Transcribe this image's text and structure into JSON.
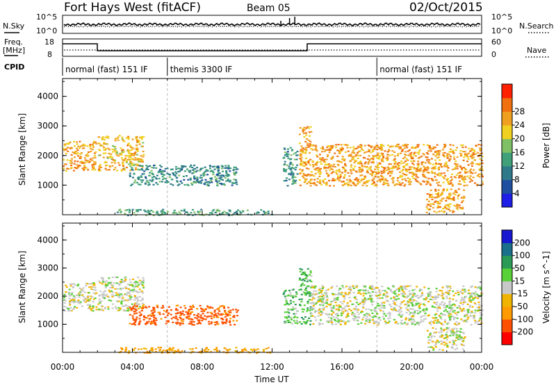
{
  "header": {
    "station": "Fort Hays West (fitACF)",
    "beam": "Beam 05",
    "date": "02/Oct/2015"
  },
  "panel_labels": {
    "nsky": "N.Sky",
    "nsearch": "N.Search",
    "freq_line1": "Freq.",
    "freq_line2": "[MHz]",
    "nave": "Nave",
    "cpid": "CPID"
  },
  "noise_ticks": {
    "left_top": "10^5",
    "left_bottom": "10^0",
    "right_top": "10^5",
    "right_bottom": "10^0"
  },
  "freq_ticks": {
    "left_top": "18",
    "left_bottom": "8",
    "right_top": "60",
    "right_bottom": "0"
  },
  "cpid_segments": [
    {
      "label": "normal (fast) 151 IF",
      "start_h": 0,
      "end_h": 6
    },
    {
      "label": "themis 3300 IF",
      "start_h": 6,
      "end_h": 18
    },
    {
      "label": "normal (fast) 151 IF",
      "start_h": 18,
      "end_h": 24
    }
  ],
  "colors": {
    "power": [
      "#1e1ee6",
      "#1e4fa0",
      "#2f7a8a",
      "#3fa07a",
      "#7fbf66",
      "#f0d020",
      "#f0a020",
      "#f07010",
      "#ff2000"
    ],
    "velocity": [
      "#ff0000",
      "#ff5000",
      "#ff9a00",
      "#f0b400",
      "#c8c8c8",
      "#58d038",
      "#2a9a56",
      "#1a6f8a",
      "#1818d0"
    ],
    "vel_grey": "#c8c8c8"
  },
  "chart_data": {
    "type": "heatmap",
    "xlabel": "Time UT",
    "ylabel": "Slant Range [km]",
    "xlim": [
      0,
      24
    ],
    "ylim": [
      0,
      4600
    ],
    "x_ticks": [
      "00:00",
      "04:00",
      "08:00",
      "12:00",
      "16:00",
      "20:00",
      "00:00"
    ],
    "y_ticks": [
      1000,
      2000,
      3000,
      4000
    ],
    "power_colorbar": {
      "label": "Power [dB]",
      "ticks": [
        4,
        8,
        12,
        16,
        20,
        24,
        28
      ]
    },
    "velocity_colorbar": {
      "label": "Velocity [m s^-1]",
      "ticks": [
        -200,
        -100,
        -50,
        -15,
        15,
        50,
        100,
        200
      ]
    },
    "echo_regions": [
      {
        "t0": 0.0,
        "t1": 1.9,
        "r0": 1500,
        "r1": 2500,
        "power_db": 26,
        "velocity": 0
      },
      {
        "t0": 2.0,
        "t1": 4.6,
        "r0": 1500,
        "r1": 2700,
        "power_db": 24,
        "velocity": 0
      },
      {
        "t0": 3.8,
        "t1": 10.0,
        "r0": 1000,
        "r1": 1700,
        "power_db": 12,
        "velocity": -120
      },
      {
        "t0": 12.6,
        "t1": 13.4,
        "r0": 1000,
        "r1": 2300,
        "power_db": 12,
        "velocity": 30
      },
      {
        "t0": 13.5,
        "t1": 14.2,
        "r0": 1000,
        "r1": 3000,
        "power_db": 26,
        "velocity": 40
      },
      {
        "t0": 14.2,
        "t1": 24.0,
        "r0": 1000,
        "r1": 2400,
        "power_db": 26,
        "velocity": 0
      },
      {
        "t0": 20.8,
        "t1": 23.0,
        "r0": 100,
        "r1": 900,
        "power_db": 26,
        "velocity": 0
      },
      {
        "t0": 3.0,
        "t1": 12.0,
        "r0": 0,
        "r1": 200,
        "power_db": 14,
        "velocity": -60
      }
    ]
  }
}
